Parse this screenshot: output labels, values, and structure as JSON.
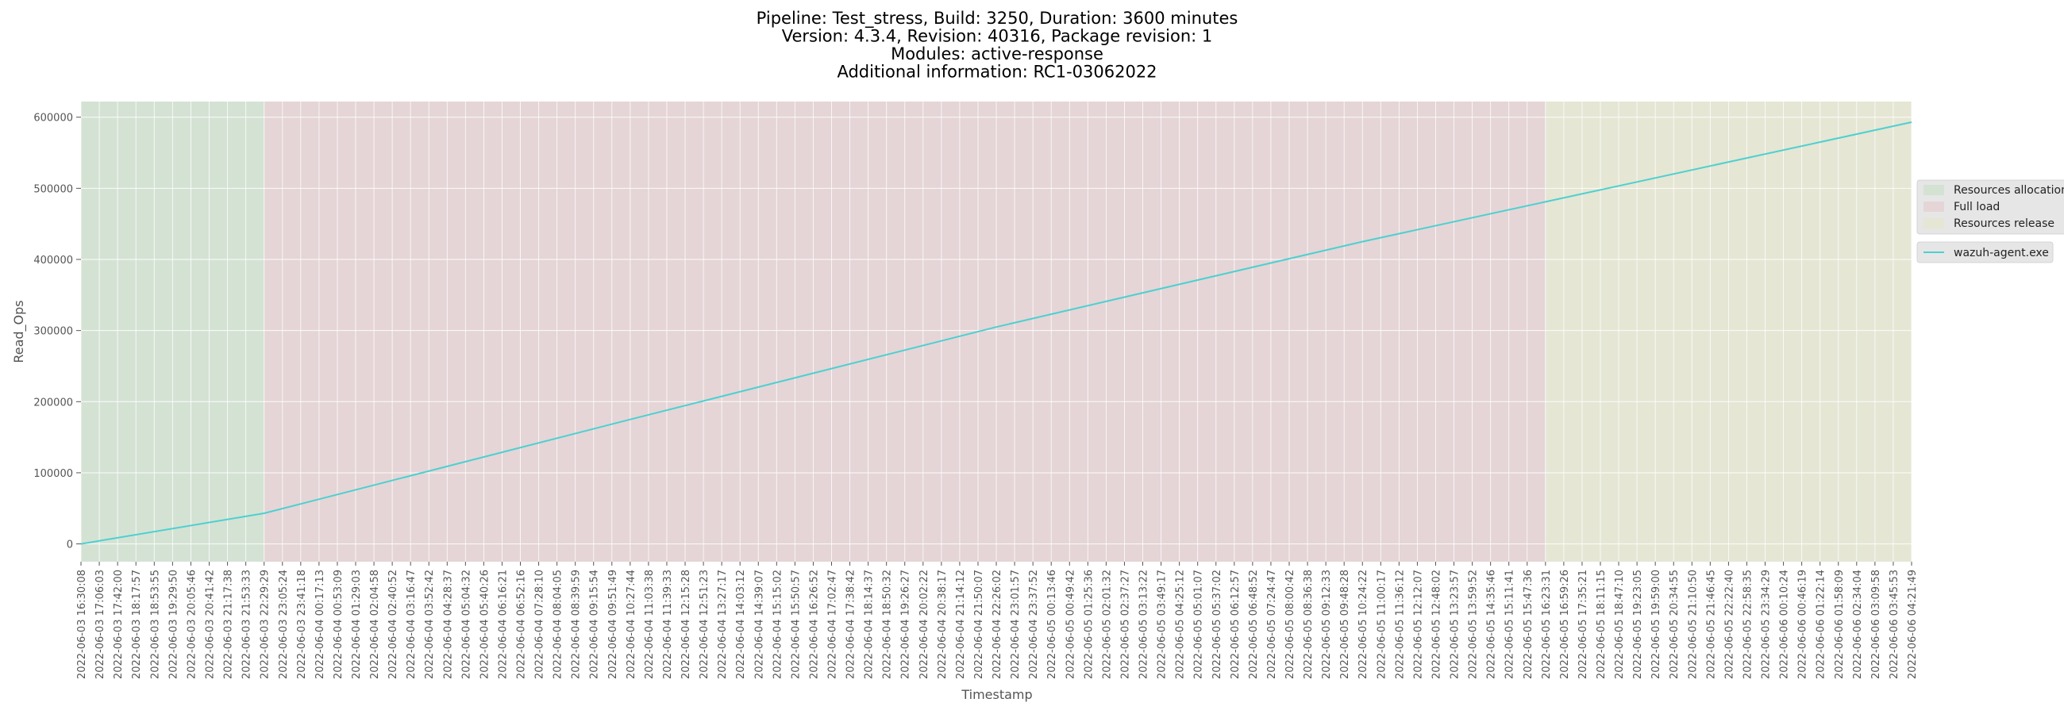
{
  "title_lines": [
    "Pipeline: Test_stress, Build: 3250, Duration: 3600 minutes",
    "Version: 4.3.4, Revision: 40316, Package revision: 1",
    "Modules: active-response",
    "Additional information: RC1-03062022"
  ],
  "chart_data": {
    "type": "line",
    "xlabel": "Timestamp",
    "ylabel": "Read_Ops",
    "ylim": [
      -25000,
      622000
    ],
    "yticks": [
      0,
      100000,
      200000,
      300000,
      400000,
      500000,
      600000
    ],
    "grid": true,
    "legend_placement": "right",
    "x_tick_labels": [
      "2022-06-03 16:30:08",
      "2022-06-03 17:06:03",
      "2022-06-03 17:42:00",
      "2022-06-03 18:17:57",
      "2022-06-03 18:53:55",
      "2022-06-03 19:29:50",
      "2022-06-03 20:05:46",
      "2022-06-03 20:41:42",
      "2022-06-03 21:17:38",
      "2022-06-03 21:53:33",
      "2022-06-03 22:29:29",
      "2022-06-03 23:05:24",
      "2022-06-03 23:41:18",
      "2022-06-04 00:17:13",
      "2022-06-04 00:53:09",
      "2022-06-04 01:29:03",
      "2022-06-04 02:04:58",
      "2022-06-04 02:40:52",
      "2022-06-04 03:16:47",
      "2022-06-04 03:52:42",
      "2022-06-04 04:28:37",
      "2022-06-04 05:04:32",
      "2022-06-04 05:40:26",
      "2022-06-04 06:16:21",
      "2022-06-04 06:52:16",
      "2022-06-04 07:28:10",
      "2022-06-04 08:04:05",
      "2022-06-04 08:39:59",
      "2022-06-04 09:15:54",
      "2022-06-04 09:51:49",
      "2022-06-04 10:27:44",
      "2022-06-04 11:03:38",
      "2022-06-04 11:39:33",
      "2022-06-04 12:15:28",
      "2022-06-04 12:51:23",
      "2022-06-04 13:27:17",
      "2022-06-04 14:03:12",
      "2022-06-04 14:39:07",
      "2022-06-04 15:15:02",
      "2022-06-04 15:50:57",
      "2022-06-04 16:26:52",
      "2022-06-04 17:02:47",
      "2022-06-04 17:38:42",
      "2022-06-04 18:14:37",
      "2022-06-04 18:50:32",
      "2022-06-04 19:26:27",
      "2022-06-04 20:02:22",
      "2022-06-04 20:38:17",
      "2022-06-04 21:14:12",
      "2022-06-04 21:50:07",
      "2022-06-04 22:26:02",
      "2022-06-04 23:01:57",
      "2022-06-04 23:37:52",
      "2022-06-05 00:13:46",
      "2022-06-05 00:49:42",
      "2022-06-05 01:25:36",
      "2022-06-05 02:01:32",
      "2022-06-05 02:37:27",
      "2022-06-05 03:13:22",
      "2022-06-05 03:49:17",
      "2022-06-05 04:25:12",
      "2022-06-05 05:01:07",
      "2022-06-05 05:37:02",
      "2022-06-05 06:12:57",
      "2022-06-05 06:48:52",
      "2022-06-05 07:24:47",
      "2022-06-05 08:00:42",
      "2022-06-05 08:36:38",
      "2022-06-05 09:12:33",
      "2022-06-05 09:48:28",
      "2022-06-05 10:24:22",
      "2022-06-05 11:00:17",
      "2022-06-05 11:36:12",
      "2022-06-05 12:12:07",
      "2022-06-05 12:48:02",
      "2022-06-05 13:23:57",
      "2022-06-05 13:59:52",
      "2022-06-05 14:35:46",
      "2022-06-05 15:11:41",
      "2022-06-05 15:47:36",
      "2022-06-05 16:23:31",
      "2022-06-05 16:59:26",
      "2022-06-05 17:35:21",
      "2022-06-05 18:11:15",
      "2022-06-05 18:47:10",
      "2022-06-05 19:23:05",
      "2022-06-05 19:59:00",
      "2022-06-05 20:34:55",
      "2022-06-05 21:10:50",
      "2022-06-05 21:46:45",
      "2022-06-05 22:22:40",
      "2022-06-05 22:58:35",
      "2022-06-05 23:34:29",
      "2022-06-06 00:10:24",
      "2022-06-06 00:46:19",
      "2022-06-06 01:22:14",
      "2022-06-06 01:58:09",
      "2022-06-06 02:34:04",
      "2022-06-06 03:09:58",
      "2022-06-06 03:45:53",
      "2022-06-06 04:21:49"
    ],
    "phases": [
      {
        "name": "Resources allocation",
        "start": "2022-06-03 16:30:08",
        "end": "2022-06-03 22:29:29",
        "color": "#d4e2d4"
      },
      {
        "name": "Full load",
        "start": "2022-06-03 22:29:29",
        "end": "2022-06-05 16:23:31",
        "color": "#e5d5d7"
      },
      {
        "name": "Resources release",
        "start": "2022-06-05 16:23:31",
        "end": "2022-06-06 04:21:49",
        "color": "#e5e6d4"
      }
    ],
    "series": [
      {
        "name": "wazuh-agent.exe",
        "color": "#4dd0d0",
        "x": [
          "2022-06-03 16:30:08",
          "2022-06-03 22:29:29",
          "2022-06-04 10:27:44",
          "2022-06-04 22:26:02",
          "2022-06-05 10:24:22",
          "2022-06-05 16:23:31",
          "2022-06-06 04:21:49"
        ],
        "values": [
          0,
          43000,
          175000,
          305000,
          425000,
          481000,
          593000
        ]
      }
    ]
  }
}
